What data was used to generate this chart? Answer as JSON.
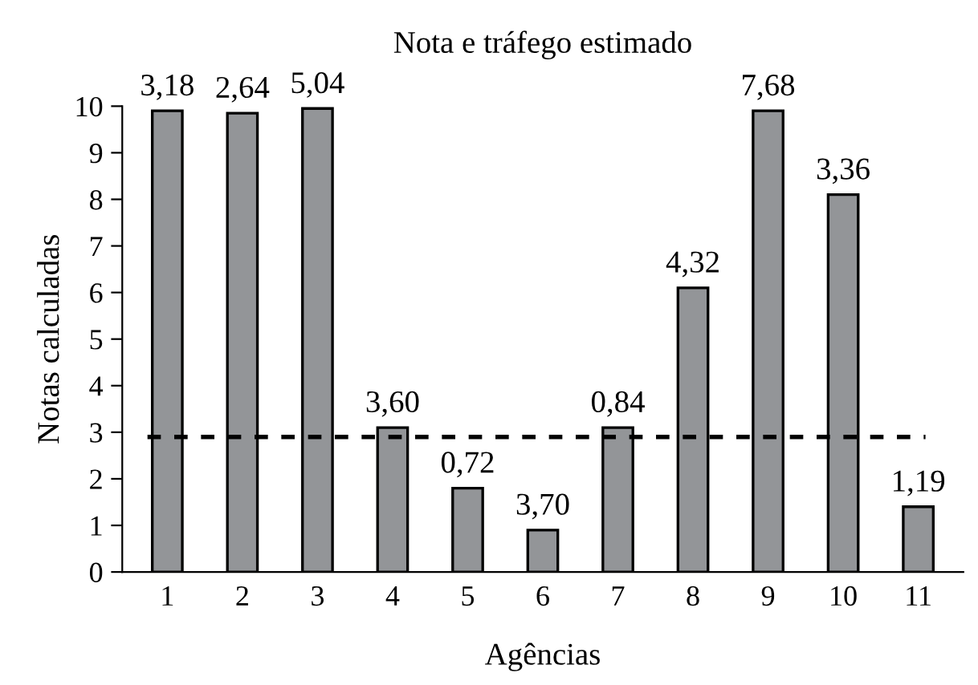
{
  "chart_data": {
    "type": "bar",
    "title": "Nota e tráfego estimado",
    "xlabel": "Agências",
    "ylabel": "Notas calculadas",
    "categories": [
      "1",
      "2",
      "3",
      "4",
      "5",
      "6",
      "7",
      "8",
      "9",
      "10",
      "11"
    ],
    "values": [
      9.9,
      9.85,
      9.95,
      3.1,
      1.8,
      0.9,
      3.1,
      6.1,
      9.9,
      8.1,
      1.4
    ],
    "annotations": [
      {
        "text": "3,18",
        "x": "1",
        "y": 9.9
      },
      {
        "text": "2,64",
        "x": "2",
        "y": 9.85
      },
      {
        "text": "5,04",
        "x": "3",
        "y": 9.95
      },
      {
        "text": "3,60",
        "x": "4",
        "y": 3.1
      },
      {
        "text": "0,72",
        "x": "5",
        "y": 1.8
      },
      {
        "text": "3,70",
        "x": "6",
        "y": 0.9
      },
      {
        "text": "0,84",
        "x": "7",
        "y": 3.1
      },
      {
        "text": "4,32",
        "x": "8",
        "y": 6.1
      },
      {
        "text": "7,68",
        "x": "9",
        "y": 9.9
      },
      {
        "text": "3,36",
        "x": "10",
        "y": 8.1
      },
      {
        "text": "1,19",
        "x": "11",
        "y": 1.4
      }
    ],
    "color": "#939598",
    "ylim": [
      0,
      10
    ],
    "yticks": [
      0,
      1,
      2,
      3,
      4,
      5,
      6,
      7,
      8,
      9,
      10
    ],
    "ref_lines": [
      {
        "axis": "y",
        "value": 2.9,
        "color": "#000000",
        "line_style": "dashed"
      }
    ],
    "grid": false,
    "legend": false
  }
}
